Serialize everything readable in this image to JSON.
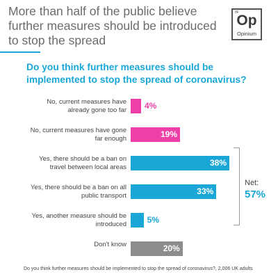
{
  "headline": "More than half of the public believe further measures should be introduced to stop the spread",
  "logo": {
    "superscript": "8F",
    "letters": "Op",
    "word": "Opinium"
  },
  "question": "Do you think further measures should be implemented to stop the spread of coronavirus?",
  "colors": {
    "pink": "#ee3fa8",
    "blue": "#1aa7d8",
    "grey": "#8c8c8c"
  },
  "chart_data": {
    "type": "bar",
    "orientation": "horizontal",
    "categories": [
      "No, current measures have already gone too far",
      "No, current measures have gone far enough",
      "Yes, there should be a ban on travel between local areas",
      "Yes, there should be a ban on all public transport",
      "Yes, another measure should be introduced",
      "Don't know"
    ],
    "values": [
      4,
      19,
      38,
      33,
      5,
      20
    ],
    "value_labels": [
      "4%",
      "19%",
      "38%",
      "33%",
      "5%",
      "20%"
    ],
    "bar_colors": [
      "#ee3fa8",
      "#ee3fa8",
      "#1aa7d8",
      "#1aa7d8",
      "#1aa7d8",
      "#8c8c8c"
    ],
    "unit": "%",
    "xlim": [
      0,
      38
    ],
    "net": {
      "label": "Net:",
      "value": "57%"
    }
  },
  "footnote": "Do you think further measures should be implemented to stop the spread of coronavirus?, 2,006 UK adults"
}
